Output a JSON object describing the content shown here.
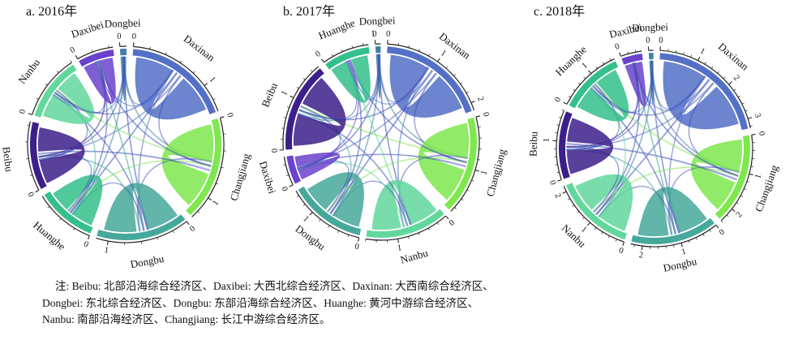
{
  "colors": {
    "Daxinan": "#5470c6",
    "Changjiang": "#7ee84e",
    "Nanbu": "#62d79c",
    "Dongbu": "#46a89a",
    "Huanghe": "#34c08a",
    "Beibu": "#3c1f8a",
    "Daxibei": "#6a42cc",
    "Dongbei": "#3f7fa6"
  },
  "panels": [
    {
      "title": "a. 2016年",
      "chart_data": {
        "type": "chord",
        "regions": [
          {
            "name": "Dongbei",
            "value": 0.08,
            "ticks": [
              "0"
            ]
          },
          {
            "name": "Daxinan",
            "value": 1.35,
            "ticks": [
              "0",
              "1"
            ]
          },
          {
            "name": "Changjiang",
            "value": 1.3,
            "ticks": [
              "0",
              "1"
            ]
          },
          {
            "name": "Dongbu",
            "value": 1.15,
            "ticks": [
              "0",
              "1"
            ]
          },
          {
            "name": "Huanghe",
            "value": 0.75,
            "ticks": [
              "0"
            ]
          },
          {
            "name": "Beibu",
            "value": 0.85,
            "ticks": [
              "0"
            ]
          },
          {
            "name": "Nanbu",
            "value": 0.8,
            "ticks": [
              "0"
            ]
          },
          {
            "name": "Daxibei",
            "value": 0.45,
            "ticks": [
              "0"
            ]
          }
        ]
      }
    },
    {
      "title": "b. 2017年",
      "chart_data": {
        "type": "chord",
        "regions": [
          {
            "name": "Dongbei",
            "value": 0.1,
            "ticks": [
              "0"
            ]
          },
          {
            "name": "Daxinan",
            "value": 2.15,
            "ticks": [
              "0",
              "1",
              "2"
            ]
          },
          {
            "name": "Changjiang",
            "value": 1.9,
            "ticks": [
              "0",
              "1"
            ]
          },
          {
            "name": "Nanbu",
            "value": 1.6,
            "ticks": [
              "0",
              "1"
            ]
          },
          {
            "name": "Dongbu",
            "value": 1.5,
            "ticks": [
              "0",
              "1"
            ]
          },
          {
            "name": "Daxibei",
            "value": 0.55,
            "ticks": [
              "0"
            ]
          },
          {
            "name": "Beibu",
            "value": 1.75,
            "ticks": [
              "0",
              "1"
            ]
          },
          {
            "name": "Huanghe",
            "value": 0.9,
            "ticks": [
              "0",
              "1"
            ]
          }
        ]
      }
    },
    {
      "title": "c. 2018年",
      "chart_data": {
        "type": "chord",
        "regions": [
          {
            "name": "Dongbei",
            "value": 0.12,
            "ticks": [
              "0"
            ]
          },
          {
            "name": "Daxinan",
            "value": 3.25,
            "ticks": [
              "0",
              "1",
              "2",
              "3"
            ]
          },
          {
            "name": "Changjiang",
            "value": 2.4,
            "ticks": [
              "0",
              "1",
              "2"
            ]
          },
          {
            "name": "Dongbu",
            "value": 2.3,
            "ticks": [
              "0",
              "1",
              "2"
            ]
          },
          {
            "name": "Nanbu",
            "value": 2.15,
            "ticks": [
              "0",
              "1",
              "2"
            ]
          },
          {
            "name": "Beibu",
            "value": 1.8,
            "ticks": [
              "0",
              "1"
            ]
          },
          {
            "name": "Huanghe",
            "value": 1.7,
            "ticks": [
              "0",
              "1"
            ]
          },
          {
            "name": "Daxibei",
            "value": 0.55,
            "ticks": [
              "0"
            ]
          }
        ]
      }
    }
  ],
  "note": {
    "line1": "注: Beibu: 北部沿海综合经济区、Daxibei: 大西北综合经济区、Daxinan: 大西南综合经济区、",
    "line2": "Dongbei: 东北综合经济区、Dongbu: 东部沿海综合经济区、Huanghe: 黄河中游综合经济区、",
    "line3": "Nanbu: 南部沿海经济区、Changjiang: 长江中游综合经济区。"
  }
}
